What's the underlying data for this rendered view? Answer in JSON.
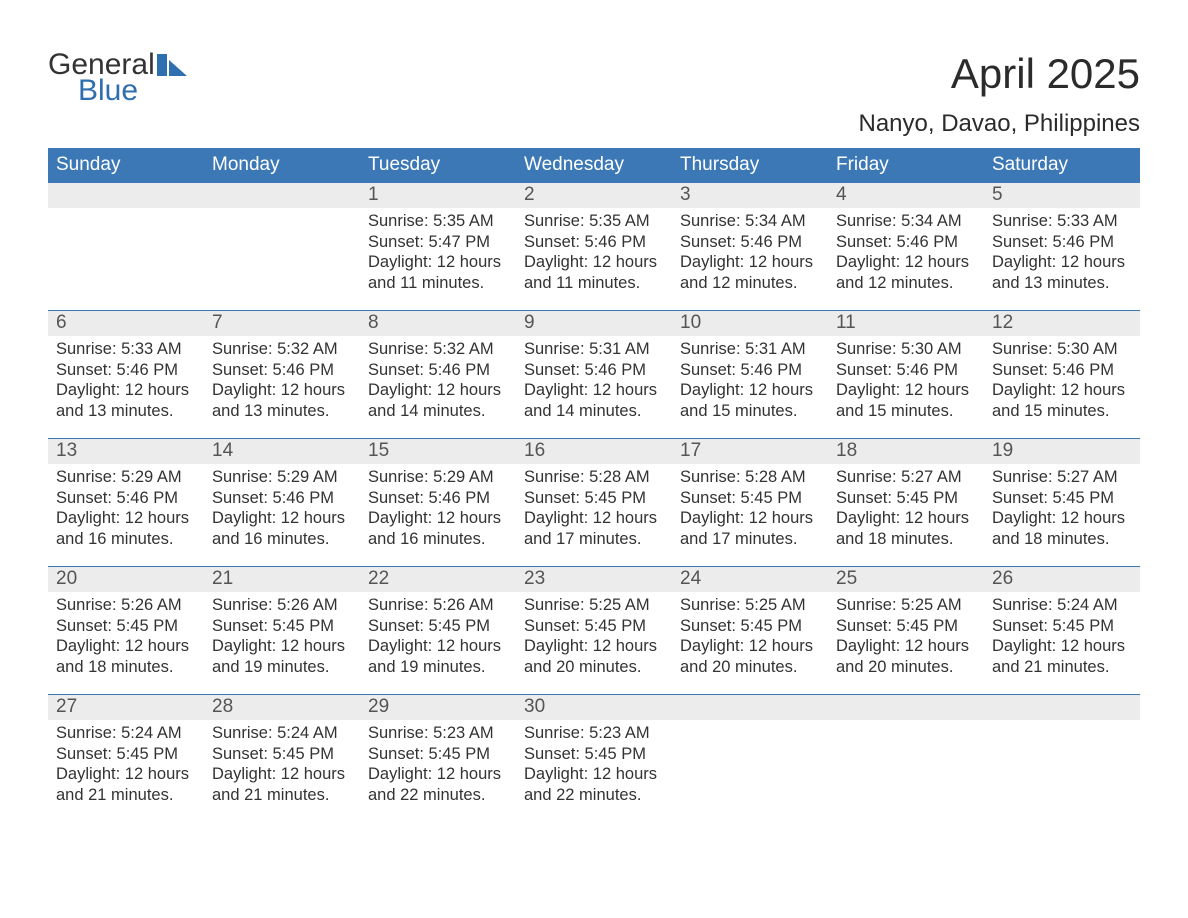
{
  "brand": {
    "general": "General",
    "blue": "Blue",
    "logo_color": "#2f6fb0"
  },
  "title": "April 2025",
  "location": "Nanyo, Davao, Philippines",
  "colors": {
    "header_bg": "#3b78b5",
    "header_fg": "#ffffff",
    "daynum_bg": "#ececec",
    "daynum_fg": "#555555",
    "week_divider": "#3b78b5",
    "body_text": "#333333",
    "title_text": "#2b2b2b",
    "background": "#ffffff"
  },
  "typography": {
    "title_fontsize": 42,
    "location_fontsize": 24,
    "dow_fontsize": 19,
    "daynum_fontsize": 19,
    "cell_fontsize": 16.5,
    "font_family": "Arial"
  },
  "table": {
    "type": "calendar",
    "columns": [
      "Sunday",
      "Monday",
      "Tuesday",
      "Wednesday",
      "Thursday",
      "Friday",
      "Saturday"
    ],
    "weeks": [
      [
        {
          "day": "",
          "sunrise": "",
          "sunset": "",
          "daylight": ""
        },
        {
          "day": "",
          "sunrise": "",
          "sunset": "",
          "daylight": ""
        },
        {
          "day": "1",
          "sunrise": "5:35 AM",
          "sunset": "5:47 PM",
          "daylight": "12 hours and 11 minutes."
        },
        {
          "day": "2",
          "sunrise": "5:35 AM",
          "sunset": "5:46 PM",
          "daylight": "12 hours and 11 minutes."
        },
        {
          "day": "3",
          "sunrise": "5:34 AM",
          "sunset": "5:46 PM",
          "daylight": "12 hours and 12 minutes."
        },
        {
          "day": "4",
          "sunrise": "5:34 AM",
          "sunset": "5:46 PM",
          "daylight": "12 hours and 12 minutes."
        },
        {
          "day": "5",
          "sunrise": "5:33 AM",
          "sunset": "5:46 PM",
          "daylight": "12 hours and 13 minutes."
        }
      ],
      [
        {
          "day": "6",
          "sunrise": "5:33 AM",
          "sunset": "5:46 PM",
          "daylight": "12 hours and 13 minutes."
        },
        {
          "day": "7",
          "sunrise": "5:32 AM",
          "sunset": "5:46 PM",
          "daylight": "12 hours and 13 minutes."
        },
        {
          "day": "8",
          "sunrise": "5:32 AM",
          "sunset": "5:46 PM",
          "daylight": "12 hours and 14 minutes."
        },
        {
          "day": "9",
          "sunrise": "5:31 AM",
          "sunset": "5:46 PM",
          "daylight": "12 hours and 14 minutes."
        },
        {
          "day": "10",
          "sunrise": "5:31 AM",
          "sunset": "5:46 PM",
          "daylight": "12 hours and 15 minutes."
        },
        {
          "day": "11",
          "sunrise": "5:30 AM",
          "sunset": "5:46 PM",
          "daylight": "12 hours and 15 minutes."
        },
        {
          "day": "12",
          "sunrise": "5:30 AM",
          "sunset": "5:46 PM",
          "daylight": "12 hours and 15 minutes."
        }
      ],
      [
        {
          "day": "13",
          "sunrise": "5:29 AM",
          "sunset": "5:46 PM",
          "daylight": "12 hours and 16 minutes."
        },
        {
          "day": "14",
          "sunrise": "5:29 AM",
          "sunset": "5:46 PM",
          "daylight": "12 hours and 16 minutes."
        },
        {
          "day": "15",
          "sunrise": "5:29 AM",
          "sunset": "5:46 PM",
          "daylight": "12 hours and 16 minutes."
        },
        {
          "day": "16",
          "sunrise": "5:28 AM",
          "sunset": "5:45 PM",
          "daylight": "12 hours and 17 minutes."
        },
        {
          "day": "17",
          "sunrise": "5:28 AM",
          "sunset": "5:45 PM",
          "daylight": "12 hours and 17 minutes."
        },
        {
          "day": "18",
          "sunrise": "5:27 AM",
          "sunset": "5:45 PM",
          "daylight": "12 hours and 18 minutes."
        },
        {
          "day": "19",
          "sunrise": "5:27 AM",
          "sunset": "5:45 PM",
          "daylight": "12 hours and 18 minutes."
        }
      ],
      [
        {
          "day": "20",
          "sunrise": "5:26 AM",
          "sunset": "5:45 PM",
          "daylight": "12 hours and 18 minutes."
        },
        {
          "day": "21",
          "sunrise": "5:26 AM",
          "sunset": "5:45 PM",
          "daylight": "12 hours and 19 minutes."
        },
        {
          "day": "22",
          "sunrise": "5:26 AM",
          "sunset": "5:45 PM",
          "daylight": "12 hours and 19 minutes."
        },
        {
          "day": "23",
          "sunrise": "5:25 AM",
          "sunset": "5:45 PM",
          "daylight": "12 hours and 20 minutes."
        },
        {
          "day": "24",
          "sunrise": "5:25 AM",
          "sunset": "5:45 PM",
          "daylight": "12 hours and 20 minutes."
        },
        {
          "day": "25",
          "sunrise": "5:25 AM",
          "sunset": "5:45 PM",
          "daylight": "12 hours and 20 minutes."
        },
        {
          "day": "26",
          "sunrise": "5:24 AM",
          "sunset": "5:45 PM",
          "daylight": "12 hours and 21 minutes."
        }
      ],
      [
        {
          "day": "27",
          "sunrise": "5:24 AM",
          "sunset": "5:45 PM",
          "daylight": "12 hours and 21 minutes."
        },
        {
          "day": "28",
          "sunrise": "5:24 AM",
          "sunset": "5:45 PM",
          "daylight": "12 hours and 21 minutes."
        },
        {
          "day": "29",
          "sunrise": "5:23 AM",
          "sunset": "5:45 PM",
          "daylight": "12 hours and 22 minutes."
        },
        {
          "day": "30",
          "sunrise": "5:23 AM",
          "sunset": "5:45 PM",
          "daylight": "12 hours and 22 minutes."
        },
        {
          "day": "",
          "sunrise": "",
          "sunset": "",
          "daylight": ""
        },
        {
          "day": "",
          "sunrise": "",
          "sunset": "",
          "daylight": ""
        },
        {
          "day": "",
          "sunrise": "",
          "sunset": "",
          "daylight": ""
        }
      ]
    ],
    "labels": {
      "sunrise": "Sunrise:",
      "sunset": "Sunset:",
      "daylight": "Daylight:"
    }
  }
}
